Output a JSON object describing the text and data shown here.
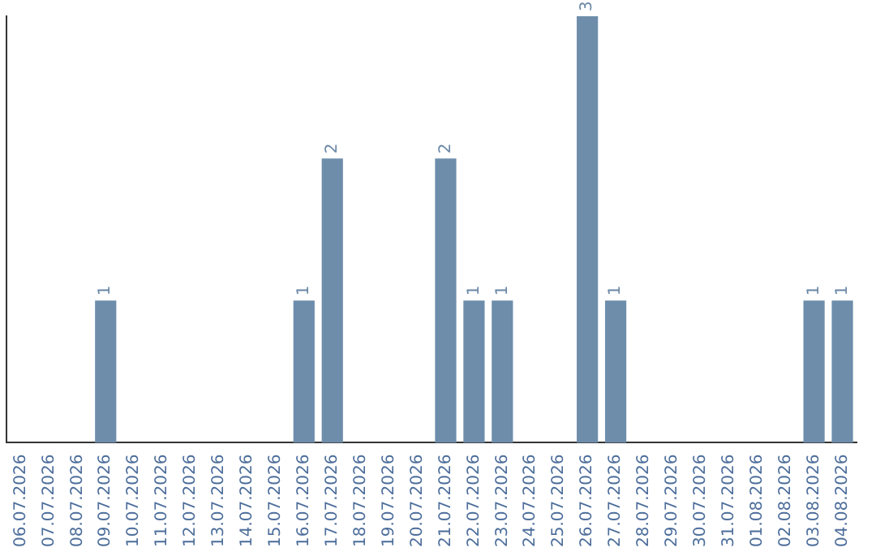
{
  "chart_data": {
    "type": "bar",
    "categories": [
      "06.07.2026",
      "07.07.2026",
      "08.07.2026",
      "09.07.2026",
      "10.07.2026",
      "11.07.2026",
      "12.07.2026",
      "13.07.2026",
      "14.07.2026",
      "15.07.2026",
      "16.07.2026",
      "17.07.2026",
      "18.07.2026",
      "19.07.2026",
      "20.07.2026",
      "21.07.2026",
      "22.07.2026",
      "23.07.2026",
      "24.07.2026",
      "25.07.2026",
      "26.07.2026",
      "27.07.2026",
      "28.07.2026",
      "29.07.2026",
      "30.07.2026",
      "31.07.2026",
      "01.08.2026",
      "02.08.2026",
      "03.08.2026",
      "04.08.2026"
    ],
    "values": [
      0,
      0,
      0,
      1,
      0,
      0,
      0,
      0,
      0,
      0,
      1,
      2,
      0,
      0,
      0,
      2,
      1,
      1,
      0,
      0,
      3,
      1,
      0,
      0,
      0,
      0,
      0,
      0,
      1,
      1
    ],
    "value_labels": [
      null,
      null,
      null,
      "1",
      null,
      null,
      null,
      null,
      null,
      null,
      "1",
      "2",
      null,
      null,
      null,
      "2",
      "1",
      "1",
      null,
      null,
      "3",
      "1",
      null,
      null,
      null,
      null,
      null,
      null,
      "1",
      "1"
    ],
    "color": "#6d8dab",
    "ylim": [
      0,
      3
    ],
    "tick_labels": "x",
    "grid": false,
    "legend": false
  }
}
